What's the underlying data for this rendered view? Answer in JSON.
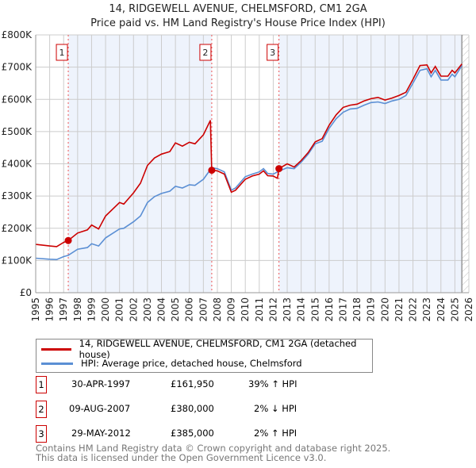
{
  "header": {
    "title": "14, RIDGEWELL AVENUE, CHELMSFORD, CM1 2GA",
    "subtitle": "Price paid vs. HM Land Registry's House Price Index (HPI)"
  },
  "chart_data": {
    "type": "line",
    "title": "14, RIDGEWELL AVENUE, CHELMSFORD, CM1 2GA",
    "subtitle": "Price paid vs. HM Land Registry's House Price Index (HPI)",
    "xlim": [
      1995,
      2026
    ],
    "ylim": [
      0,
      800000
    ],
    "x_ticks": [
      "1995",
      "1996",
      "1997",
      "1998",
      "1999",
      "2000",
      "2001",
      "2002",
      "2003",
      "2004",
      "2005",
      "2006",
      "2007",
      "2008",
      "2009",
      "2010",
      "2011",
      "2012",
      "2013",
      "2014",
      "2015",
      "2016",
      "2017",
      "2018",
      "2019",
      "2020",
      "2021",
      "2022",
      "2023",
      "2024",
      "2025",
      "2026"
    ],
    "y_ticks": [
      {
        "v": 0,
        "label": "£0"
      },
      {
        "v": 100000,
        "label": "£100K"
      },
      {
        "v": 200000,
        "label": "£200K"
      },
      {
        "v": 300000,
        "label": "£300K"
      },
      {
        "v": 400000,
        "label": "£400K"
      },
      {
        "v": 500000,
        "label": "£500K"
      },
      {
        "v": 600000,
        "label": "£600K"
      },
      {
        "v": 700000,
        "label": "£700K"
      },
      {
        "v": 800000,
        "label": "£800K"
      }
    ],
    "grid": true,
    "colors": {
      "price": "#cc0000",
      "hpi": "#5b8fd4",
      "shade": "#eef3fc"
    },
    "shaded_periods": [
      [
        1997.33,
        2007.6
      ],
      [
        2012.41,
        2025.5
      ]
    ],
    "hatched_from": 2025.5,
    "series": [
      {
        "name": "hpi",
        "x": [
          1995,
          1996,
          1996.5,
          1997,
          1997.33,
          1998,
          1998.7,
          1999,
          1999.5,
          2000,
          2001,
          2001.3,
          2002,
          2002.5,
          2003,
          2003.5,
          2004,
          2004.6,
          2005,
          2005.5,
          2006,
          2006.4,
          2007,
          2007.6,
          2008,
          2008.5,
          2009,
          2009.3,
          2010,
          2010.5,
          2011,
          2011.3,
          2011.6,
          2012,
          2012.41,
          2013,
          2013.5,
          2014,
          2014.5,
          2015,
          2015.5,
          2016,
          2016.5,
          2017,
          2017.5,
          2018,
          2018.5,
          2019,
          2019.5,
          2020,
          2020.5,
          2021,
          2021.5,
          2022,
          2022.5,
          2023,
          2023.3,
          2023.6,
          2024,
          2024.5,
          2024.8,
          2025,
          2025.5
        ],
        "y": [
          107000,
          104000,
          103000,
          112000,
          116000,
          135000,
          140000,
          152000,
          145000,
          170000,
          198000,
          200000,
          220000,
          238000,
          280000,
          298000,
          308000,
          315000,
          330000,
          325000,
          335000,
          333000,
          352000,
          388000,
          385000,
          375000,
          318000,
          325000,
          360000,
          368000,
          375000,
          385000,
          370000,
          368000,
          377000,
          388000,
          385000,
          405000,
          430000,
          462000,
          470000,
          510000,
          540000,
          560000,
          570000,
          572000,
          582000,
          590000,
          592000,
          587000,
          595000,
          600000,
          612000,
          650000,
          690000,
          695000,
          670000,
          690000,
          660000,
          660000,
          678000,
          670000,
          705000
        ]
      },
      {
        "name": "price",
        "x": [
          1995,
          1996,
          1996.5,
          1997,
          1997.33,
          1998,
          1998.7,
          1999,
          1999.5,
          2000,
          2001,
          2001.3,
          2002,
          2002.5,
          2003,
          2003.5,
          2004,
          2004.6,
          2005,
          2005.5,
          2006,
          2006.4,
          2007,
          2007.5,
          2007.6,
          2008,
          2008.5,
          2009,
          2009.3,
          2010,
          2010.5,
          2011,
          2011.3,
          2011.6,
          2012,
          2012.3,
          2012.41,
          2013,
          2013.5,
          2014,
          2014.5,
          2015,
          2015.5,
          2016,
          2016.5,
          2017,
          2017.5,
          2018,
          2018.5,
          2019,
          2019.5,
          2020,
          2020.5,
          2021,
          2021.5,
          2022,
          2022.5,
          2023,
          2023.3,
          2023.6,
          2024,
          2024.5,
          2024.8,
          2025,
          2025.5
        ],
        "y": [
          150000,
          145000,
          143000,
          156000,
          161950,
          185000,
          195000,
          210000,
          198000,
          238000,
          280000,
          275000,
          310000,
          340000,
          395000,
          418000,
          430000,
          438000,
          465000,
          455000,
          467000,
          462000,
          490000,
          535000,
          380000,
          378000,
          368000,
          312000,
          318000,
          352000,
          362000,
          368000,
          378000,
          363000,
          362000,
          355000,
          385000,
          400000,
          390000,
          410000,
          435000,
          468000,
          478000,
          520000,
          552000,
          575000,
          582000,
          585000,
          595000,
          602000,
          606000,
          598000,
          604000,
          612000,
          622000,
          662000,
          705000,
          707000,
          682000,
          702000,
          672000,
          672000,
          690000,
          682000,
          710000
        ]
      }
    ],
    "markers": [
      {
        "id": "1",
        "x": 1997.33,
        "y": 161950
      },
      {
        "id": "2",
        "x": 2007.6,
        "y": 380000
      },
      {
        "id": "3",
        "x": 2012.41,
        "y": 385000
      }
    ],
    "legend_position": "below"
  },
  "legend": {
    "price_label": "14, RIDGEWELL AVENUE, CHELMSFORD, CM1 2GA (detached house)",
    "hpi_label": "HPI: Average price, detached house, Chelmsford"
  },
  "transactions": [
    {
      "num": "1",
      "date": "30-APR-1997",
      "price": "£161,950",
      "hpi": "39% ↑ HPI"
    },
    {
      "num": "2",
      "date": "09-AUG-2007",
      "price": "£380,000",
      "hpi": "2% ↓ HPI"
    },
    {
      "num": "3",
      "date": "29-MAY-2012",
      "price": "£385,000",
      "hpi": "2% ↑ HPI"
    }
  ],
  "footer": {
    "line1": "Contains HM Land Registry data © Crown copyright and database right 2025.",
    "line2": "This data is licensed under the Open Government Licence v3.0."
  }
}
